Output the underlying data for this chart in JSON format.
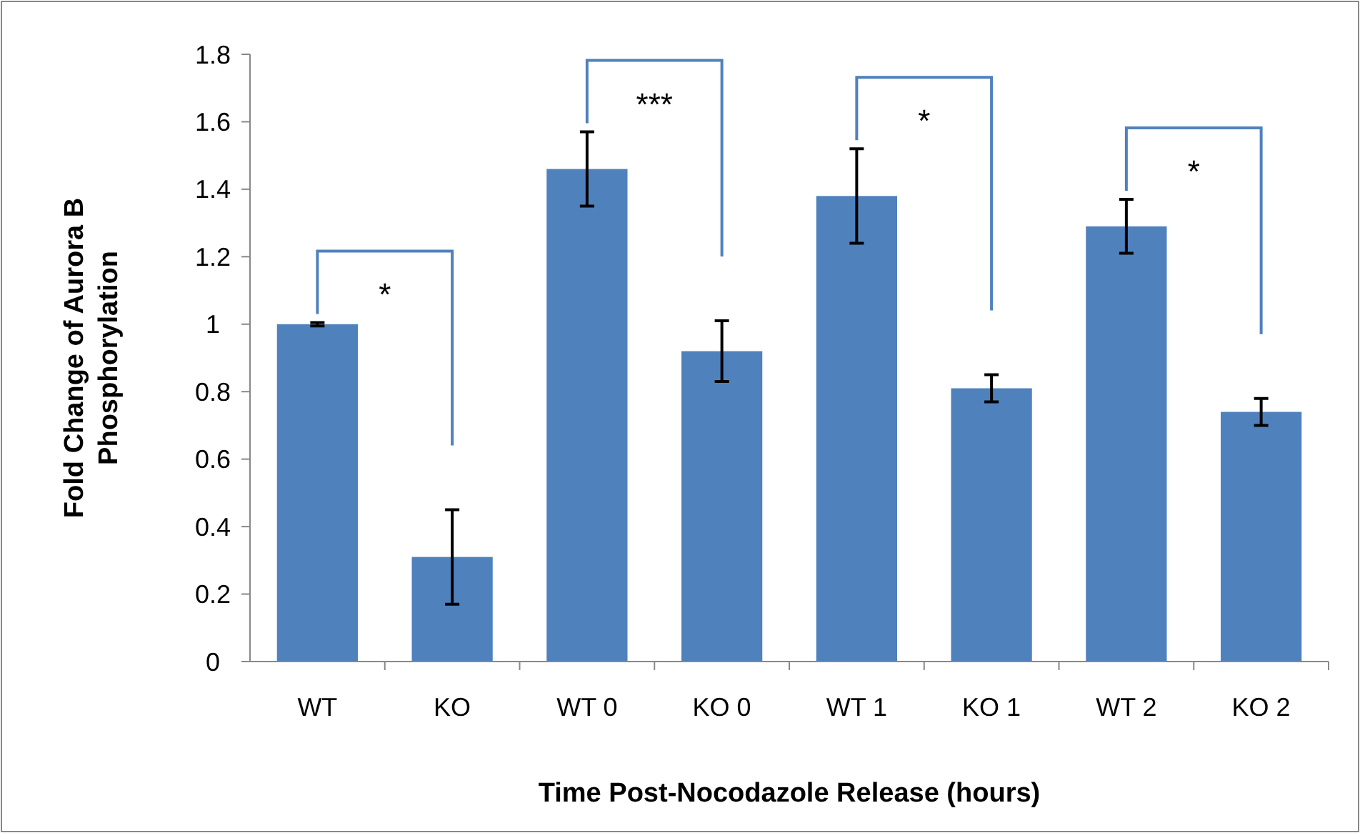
{
  "chart_data": {
    "type": "bar",
    "xlabel": "Time Post-Nocodazole Release (hours)",
    "ylabel": "Fold Change of Aurora B Phosphorylation",
    "categories": [
      "WT",
      "KO",
      "WT 0",
      "KO 0",
      "WT 1",
      "KO 1",
      "WT 2",
      "KO 2"
    ],
    "values": [
      1.0,
      0.31,
      1.46,
      0.92,
      1.38,
      0.81,
      1.29,
      0.74
    ],
    "errors": [
      0.005,
      0.14,
      0.11,
      0.09,
      0.14,
      0.04,
      0.08,
      0.04
    ],
    "color": "#4f81bd",
    "ylim": [
      0,
      1.8
    ],
    "yticks": [
      0,
      0.2,
      0.4,
      0.6,
      0.8,
      1,
      1.2,
      1.4,
      1.6,
      1.8
    ],
    "annotations": [
      "*",
      "***",
      "*",
      "*"
    ]
  }
}
